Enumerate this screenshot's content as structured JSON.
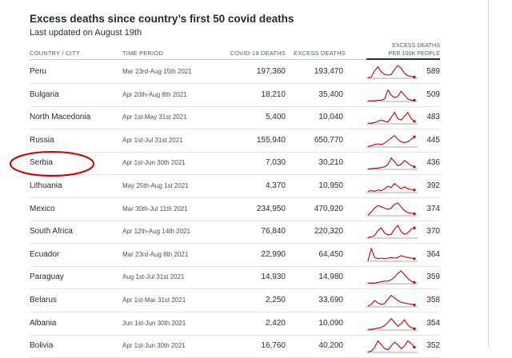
{
  "page": {
    "title": "Excess deaths since country’s first 50 covid deaths",
    "subtitle": "Last updated on August 19th"
  },
  "table": {
    "headers": {
      "country": "COUNTRY / CITY",
      "period": "TIME PERIOD",
      "covid": "COVID-19 DEATHS",
      "excess": "EXCESS DEATHS",
      "per100k_line1": "EXCESS DEATHS",
      "per100k_line2": "PER 100K PEOPLE"
    },
    "rows": [
      {
        "country": "Peru",
        "period": "Mar 23rd-Aug 15th 2021",
        "covid": "197,360",
        "excess": "193,470",
        "per100k": "589",
        "spark": [
          0.05,
          0.1,
          0.6,
          0.9,
          0.5,
          0.3,
          0.25,
          0.3,
          0.7,
          1.0,
          0.8,
          0.4,
          0.2,
          0.15,
          0.1
        ]
      },
      {
        "country": "Bulgaria",
        "period": "Apr 20th-Aug 8th 2021",
        "covid": "18,210",
        "excess": "35,400",
        "per100k": "509",
        "spark": [
          0.05,
          0.05,
          0.05,
          0.1,
          0.1,
          0.2,
          0.9,
          0.5,
          0.3,
          0.4,
          0.8,
          0.5,
          0.2,
          0.1,
          0.1
        ]
      },
      {
        "country": "North Macedonia",
        "period": "Apr 1st-May 31st 2021",
        "covid": "5,400",
        "excess": "10,040",
        "per100k": "483",
        "spark": [
          0.05,
          0.05,
          0.1,
          0.2,
          0.3,
          0.2,
          0.15,
          0.5,
          0.9,
          0.4,
          0.3,
          0.6,
          0.9,
          0.4,
          0.2
        ]
      },
      {
        "country": "Russia",
        "period": "Apr 1st-Jul 31st 2021",
        "covid": "155,940",
        "excess": "650,770",
        "per100k": "445",
        "spark": [
          0.05,
          0.1,
          0.2,
          0.25,
          0.2,
          0.3,
          0.5,
          0.7,
          0.9,
          0.6,
          0.4,
          0.35,
          0.4,
          0.6,
          0.8
        ]
      },
      {
        "country": "Serbia",
        "period": "Apr 1st-Jun 30th 2021",
        "covid": "7,030",
        "excess": "30,210",
        "per100k": "436",
        "spark": [
          0.05,
          0.05,
          0.1,
          0.1,
          0.15,
          0.2,
          0.4,
          0.9,
          0.6,
          0.3,
          0.4,
          0.7,
          0.5,
          0.3,
          0.2
        ]
      },
      {
        "country": "Lithuania",
        "period": "May 25th-Aug 1st 2021",
        "covid": "4,370",
        "excess": "10,950",
        "per100k": "392",
        "spark": [
          0.1,
          0.15,
          0.1,
          0.2,
          0.15,
          0.3,
          0.5,
          0.4,
          0.7,
          0.5,
          0.3,
          0.45,
          0.3,
          0.25,
          0.2
        ]
      },
      {
        "country": "Mexico",
        "period": "Mar 30th-Jul 11th 2021",
        "covid": "234,950",
        "excess": "470,920",
        "per100k": "374",
        "spark": [
          0.05,
          0.3,
          0.6,
          0.8,
          0.7,
          0.6,
          0.5,
          0.6,
          0.9,
          1.0,
          0.7,
          0.4,
          0.25,
          0.2,
          0.15
        ]
      },
      {
        "country": "South Africa",
        "period": "Apr 12th-Aug 14th 2021",
        "covid": "76,840",
        "excess": "220,320",
        "per100k": "370",
        "spark": [
          0.05,
          0.1,
          0.2,
          0.6,
          0.8,
          0.4,
          0.25,
          0.3,
          0.7,
          1.0,
          0.5,
          0.3,
          0.4,
          0.7,
          0.8
        ]
      },
      {
        "country": "Ecuador",
        "period": "Mar 23rd-Aug 8th 2021",
        "covid": "22,990",
        "excess": "64,450",
        "per100k": "364",
        "spark": [
          0.05,
          1.0,
          0.3,
          0.2,
          0.25,
          0.2,
          0.25,
          0.3,
          0.25,
          0.3,
          0.45,
          0.35,
          0.3,
          0.25,
          0.2
        ]
      },
      {
        "country": "Paraguay",
        "period": "Aug 1st-Jul 31st 2021",
        "covid": "14,930",
        "excess": "14,980",
        "per100k": "359",
        "spark": [
          0.05,
          0.05,
          0.05,
          0.1,
          0.15,
          0.2,
          0.2,
          0.3,
          0.5,
          0.8,
          1.0,
          0.7,
          0.4,
          0.2,
          0.1
        ]
      },
      {
        "country": "Belarus",
        "period": "Apr 1st-Mar 31st 2021",
        "covid": "2,250",
        "excess": "33,690",
        "per100k": "358",
        "spark": [
          0.05,
          0.2,
          0.5,
          0.3,
          0.2,
          0.25,
          0.6,
          0.9,
          0.7,
          0.5,
          0.35,
          0.3,
          0.25,
          0.2,
          0.15
        ]
      },
      {
        "country": "Albania",
        "period": "Jun 1st-Jun 30th 2021",
        "covid": "2,420",
        "excess": "10,090",
        "per100k": "354",
        "spark": [
          0.05,
          0.05,
          0.1,
          0.15,
          0.2,
          0.35,
          0.6,
          0.9,
          0.6,
          0.3,
          0.5,
          0.8,
          0.4,
          0.2,
          0.1
        ]
      },
      {
        "country": "Bolivia",
        "period": "Apr 1st-Jun 30th 2021",
        "covid": "16,760",
        "excess": "40,200",
        "per100k": "352",
        "spark": [
          0.05,
          0.1,
          0.4,
          0.9,
          0.6,
          0.3,
          0.2,
          0.5,
          0.8,
          0.6,
          0.3,
          0.5,
          0.9,
          0.7,
          0.4
        ]
      }
    ]
  },
  "colors": {
    "spark_line": "#c00000",
    "baseline": "#8a8d91",
    "annotation": "#d00000"
  }
}
